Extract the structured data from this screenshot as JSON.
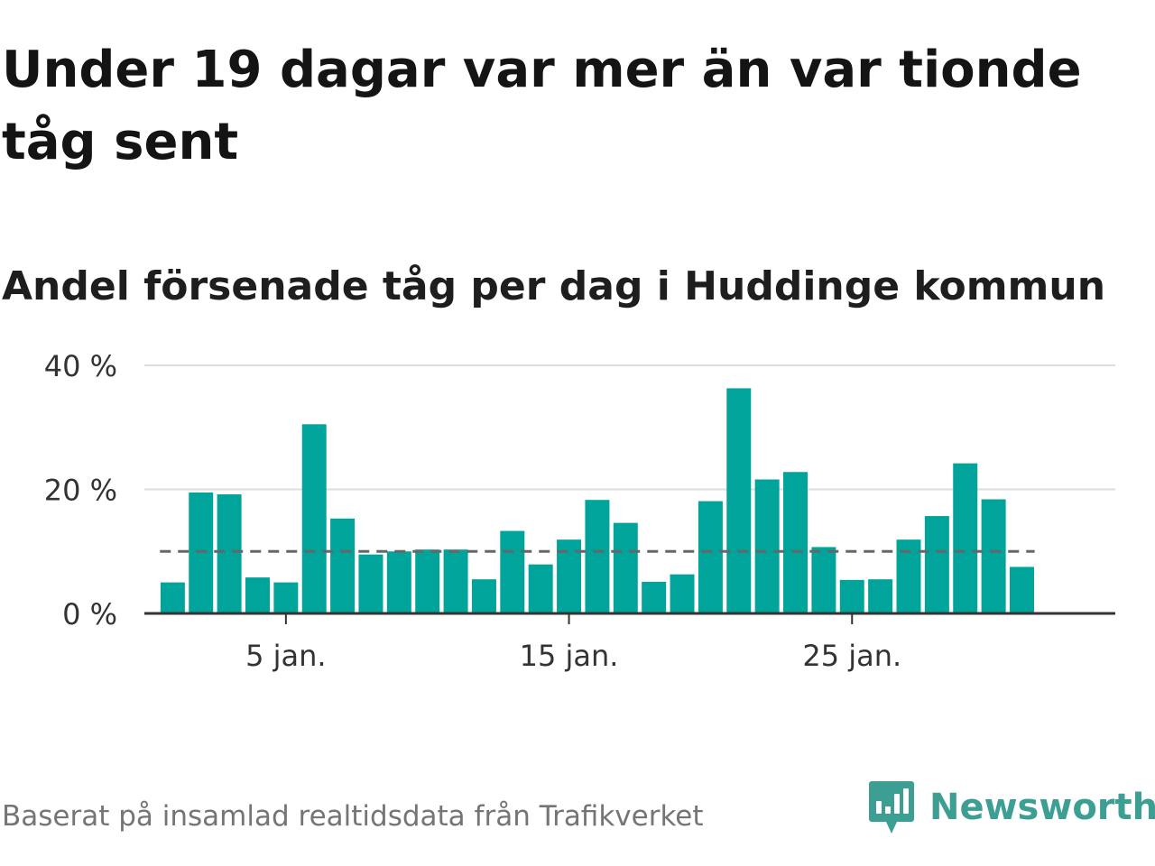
{
  "title": "Under 19 dagar var mer än var tionde tåg sent",
  "subtitle": "Andel försenade tåg per dag i Huddinge kommun",
  "footer": {
    "source": "Baserat på insamlad realtidsdata från Trafikverket",
    "brand": "Newsworthy",
    "brand_icon": "newsworthy-logo-icon"
  },
  "colors": {
    "bar": "#00a49a",
    "reference_line": "#666666",
    "grid": "#dddddd",
    "axis": "#333333",
    "brand": "#3d9e93"
  },
  "chart_data": {
    "type": "bar",
    "title": "Under 19 dagar var mer än var tionde tåg sent",
    "subtitle": "Andel försenade tåg per dag i Huddinge kommun",
    "xlabel": "",
    "ylabel": "",
    "x": [
      1,
      2,
      3,
      4,
      5,
      6,
      7,
      8,
      9,
      10,
      11,
      12,
      13,
      14,
      15,
      16,
      17,
      18,
      19,
      20,
      21,
      22,
      23,
      24,
      25,
      26,
      27,
      28,
      29,
      30,
      31
    ],
    "values": [
      5,
      19.5,
      19.2,
      5.8,
      5,
      30.5,
      15.3,
      9.5,
      10,
      10.3,
      10.3,
      5.5,
      13.3,
      7.9,
      11.9,
      18.3,
      14.6,
      5.1,
      6.3,
      18.1,
      36.3,
      21.6,
      22.8,
      10.7,
      5.4,
      5.5,
      11.9,
      15.7,
      24.2,
      18.4,
      7.5
    ],
    "reference_line": 10,
    "xticks": [
      5,
      15,
      25
    ],
    "xtick_labels": [
      "5 jan.",
      "15 jan.",
      "25 jan."
    ],
    "yticks": [
      0,
      20,
      40
    ],
    "ytick_labels": [
      "0 %",
      "20 %",
      "40 %"
    ],
    "ylim": [
      0,
      40
    ],
    "xlim": [
      0,
      34.3
    ],
    "grid": true,
    "legend": "none"
  }
}
